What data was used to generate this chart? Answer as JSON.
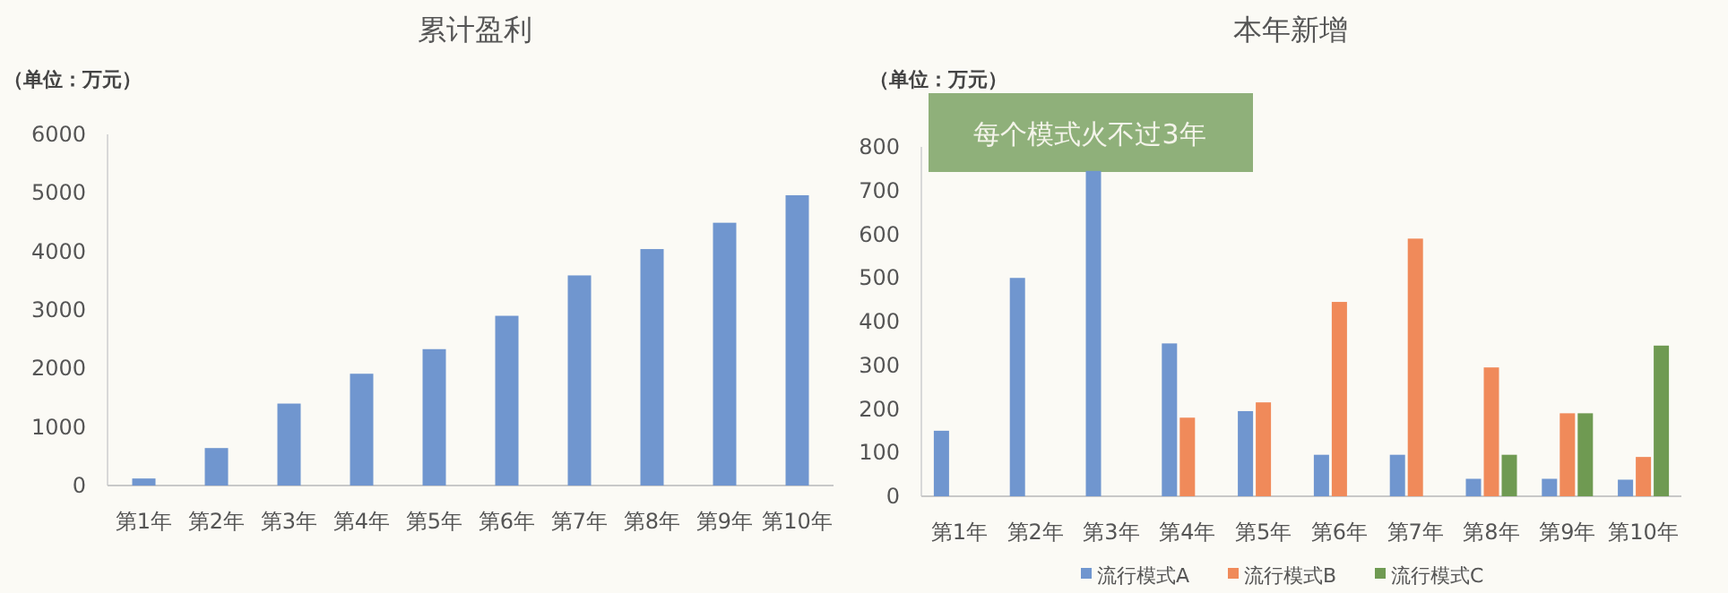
{
  "chart_data": [
    {
      "type": "bar",
      "title": "累计盈利",
      "ylabel": "（单位：万元）",
      "categories": [
        "第1年",
        "第2年",
        "第3年",
        "第4年",
        "第5年",
        "第6年",
        "第7年",
        "第8年",
        "第9年",
        "第10年"
      ],
      "values": [
        120,
        640,
        1400,
        1910,
        2330,
        2900,
        3590,
        4040,
        4490,
        4960
      ],
      "color": "#7096cf",
      "ylim": [
        0,
        6000
      ],
      "yticks": [
        0,
        1000,
        2000,
        3000,
        4000,
        5000,
        6000
      ]
    },
    {
      "type": "bar",
      "title": "本年新增",
      "ylabel": "（单位：万元）",
      "categories": [
        "第1年",
        "第2年",
        "第3年",
        "第4年",
        "第5年",
        "第6年",
        "第7年",
        "第8年",
        "第9年",
        "第10年"
      ],
      "series": [
        {
          "name": "流行模式A",
          "color": "#7096cf",
          "values": [
            150,
            500,
            745,
            350,
            195,
            95,
            95,
            40,
            40,
            38
          ]
        },
        {
          "name": "流行模式B",
          "color": "#f08a5a",
          "values": [
            null,
            null,
            null,
            180,
            215,
            445,
            590,
            295,
            190,
            90
          ]
        },
        {
          "name": "流行模式C",
          "color": "#6f9a52",
          "values": [
            null,
            null,
            null,
            null,
            null,
            null,
            null,
            95,
            190,
            345
          ]
        }
      ],
      "ylim": [
        0,
        800
      ],
      "yticks": [
        0,
        100,
        200,
        300,
        400,
        500,
        600,
        700,
        800
      ],
      "legend": "bottom",
      "annotations": [
        "每个模式火不过3年"
      ]
    }
  ]
}
